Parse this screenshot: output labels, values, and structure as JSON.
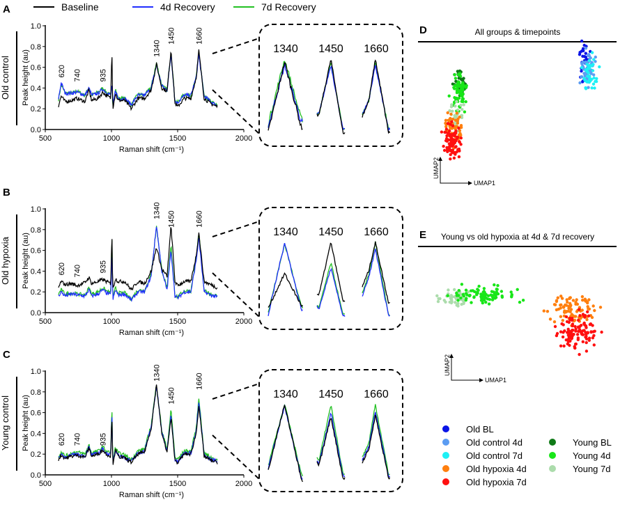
{
  "legend": {
    "items": [
      {
        "name": "Baseline",
        "color": "#000000"
      },
      {
        "name": "4d Recovery",
        "color": "#1f2dff"
      },
      {
        "name": "7d Recovery",
        "color": "#22c022"
      }
    ]
  },
  "chart_data": [
    {
      "type": "line",
      "panel": "A",
      "row_label": "Old control",
      "xlabel": "Raman shift (cm⁻¹)",
      "ylabel": "Peak height (au)",
      "xlim": [
        500,
        2000
      ],
      "ylim": [
        0,
        1.0
      ],
      "xticks": [
        500,
        1000,
        1500,
        2000
      ],
      "yticks": [
        "0.0",
        "0.2",
        "0.4",
        "0.6",
        "0.8",
        "1.0"
      ],
      "peak_labels": [
        "620",
        "740",
        "935",
        "1340",
        "1450",
        "1660"
      ],
      "peak_positions": [
        620,
        740,
        935,
        1340,
        1450,
        1660
      ],
      "peak_label_y": [
        0.5,
        0.46,
        0.46,
        0.7,
        0.82,
        0.82
      ],
      "inset_labels": [
        "1340",
        "1450",
        "1660"
      ],
      "x": [
        600,
        620,
        650,
        700,
        740,
        800,
        830,
        850,
        900,
        935,
        960,
        995,
        1003,
        1010,
        1030,
        1050,
        1100,
        1150,
        1200,
        1250,
        1300,
        1340,
        1380,
        1420,
        1450,
        1480,
        1500,
        1550,
        1600,
        1640,
        1660,
        1700,
        1750,
        1800
      ],
      "series": [
        {
          "name": "Baseline",
          "values": [
            0.23,
            0.32,
            0.27,
            0.28,
            0.3,
            0.27,
            0.38,
            0.28,
            0.3,
            0.36,
            0.33,
            0.3,
            0.8,
            0.2,
            0.35,
            0.28,
            0.28,
            0.2,
            0.3,
            0.3,
            0.38,
            0.63,
            0.4,
            0.37,
            0.77,
            0.25,
            0.22,
            0.3,
            0.3,
            0.5,
            0.76,
            0.3,
            0.25,
            0.22
          ]
        },
        {
          "name": "4d Recovery",
          "values": [
            0.3,
            0.45,
            0.35,
            0.35,
            0.36,
            0.33,
            0.4,
            0.33,
            0.35,
            0.39,
            0.36,
            0.33,
            0.45,
            0.22,
            0.38,
            0.3,
            0.3,
            0.24,
            0.33,
            0.33,
            0.4,
            0.62,
            0.42,
            0.38,
            0.73,
            0.27,
            0.26,
            0.33,
            0.33,
            0.5,
            0.72,
            0.32,
            0.27,
            0.23
          ]
        },
        {
          "name": "7d Recovery",
          "values": [
            0.29,
            0.43,
            0.35,
            0.35,
            0.37,
            0.33,
            0.41,
            0.33,
            0.36,
            0.4,
            0.36,
            0.33,
            0.45,
            0.22,
            0.39,
            0.3,
            0.3,
            0.24,
            0.34,
            0.33,
            0.41,
            0.64,
            0.43,
            0.38,
            0.75,
            0.27,
            0.26,
            0.34,
            0.33,
            0.5,
            0.74,
            0.32,
            0.27,
            0.23
          ]
        }
      ]
    },
    {
      "type": "line",
      "panel": "B",
      "row_label": "Old  hypoxia",
      "xlabel": "Raman shift (cm⁻¹)",
      "ylabel": "Peak height (au)",
      "xlim": [
        500,
        2000
      ],
      "ylim": [
        0,
        1.0
      ],
      "xticks": [
        500,
        1000,
        1500,
        2000
      ],
      "yticks": [
        "0.0",
        "0.2",
        "0.4",
        "0.6",
        "0.8",
        "1.0"
      ],
      "peak_labels": [
        "620",
        "740",
        "935",
        "1340",
        "1450",
        "1660"
      ],
      "peak_positions": [
        620,
        740,
        935,
        1340,
        1450,
        1660
      ],
      "peak_label_y": [
        0.36,
        0.34,
        0.38,
        0.9,
        0.82,
        0.82
      ],
      "inset_labels": [
        "1340",
        "1450",
        "1660"
      ],
      "x": [
        600,
        620,
        650,
        700,
        740,
        800,
        830,
        850,
        900,
        935,
        960,
        995,
        1003,
        1010,
        1030,
        1050,
        1100,
        1150,
        1200,
        1250,
        1300,
        1340,
        1380,
        1420,
        1450,
        1480,
        1500,
        1550,
        1600,
        1640,
        1660,
        1700,
        1750,
        1800
      ],
      "series": [
        {
          "name": "Baseline",
          "values": [
            0.24,
            0.3,
            0.27,
            0.28,
            0.26,
            0.29,
            0.34,
            0.28,
            0.3,
            0.32,
            0.3,
            0.28,
            0.8,
            0.22,
            0.33,
            0.3,
            0.3,
            0.22,
            0.3,
            0.28,
            0.4,
            0.63,
            0.42,
            0.35,
            0.84,
            0.3,
            0.26,
            0.3,
            0.3,
            0.55,
            0.77,
            0.3,
            0.27,
            0.24
          ]
        },
        {
          "name": "4d Recovery",
          "values": [
            0.16,
            0.2,
            0.16,
            0.18,
            0.17,
            0.16,
            0.22,
            0.16,
            0.18,
            0.22,
            0.19,
            0.17,
            0.6,
            0.12,
            0.22,
            0.17,
            0.18,
            0.12,
            0.2,
            0.2,
            0.35,
            0.84,
            0.4,
            0.22,
            0.6,
            0.16,
            0.14,
            0.2,
            0.2,
            0.5,
            0.72,
            0.2,
            0.17,
            0.15
          ]
        },
        {
          "name": "7d Recovery",
          "values": [
            0.18,
            0.22,
            0.18,
            0.19,
            0.18,
            0.17,
            0.24,
            0.18,
            0.2,
            0.24,
            0.21,
            0.19,
            0.78,
            0.13,
            0.24,
            0.19,
            0.19,
            0.13,
            0.22,
            0.21,
            0.37,
            0.83,
            0.42,
            0.23,
            0.65,
            0.17,
            0.15,
            0.21,
            0.21,
            0.52,
            0.77,
            0.21,
            0.18,
            0.16
          ]
        }
      ]
    },
    {
      "type": "line",
      "panel": "C",
      "row_label": "Young control",
      "xlabel": "Raman shift (cm⁻¹)",
      "ylabel": "Peak height (au)",
      "xlim": [
        500,
        2000
      ],
      "ylim": [
        0,
        1.0
      ],
      "xticks": [
        500,
        1000,
        1500,
        2000
      ],
      "yticks": [
        "0.0",
        "0.2",
        "0.4",
        "0.6",
        "0.8",
        "1.0"
      ],
      "peak_labels": [
        "620",
        "740",
        "935",
        "1340",
        "1450",
        "1660"
      ],
      "peak_positions": [
        620,
        740,
        935,
        1340,
        1450,
        1660
      ],
      "peak_label_y": [
        0.28,
        0.28,
        0.28,
        0.9,
        0.68,
        0.82
      ],
      "inset_labels": [
        "1340",
        "1450",
        "1660"
      ],
      "x": [
        600,
        620,
        650,
        700,
        740,
        800,
        830,
        850,
        900,
        935,
        960,
        995,
        1003,
        1010,
        1030,
        1050,
        1100,
        1150,
        1200,
        1250,
        1300,
        1340,
        1380,
        1420,
        1450,
        1480,
        1500,
        1550,
        1600,
        1640,
        1660,
        1700,
        1750,
        1800
      ],
      "series": [
        {
          "name": "Baseline",
          "values": [
            0.15,
            0.19,
            0.16,
            0.18,
            0.19,
            0.17,
            0.26,
            0.18,
            0.2,
            0.24,
            0.2,
            0.18,
            0.6,
            0.1,
            0.24,
            0.18,
            0.16,
            0.12,
            0.2,
            0.22,
            0.45,
            0.87,
            0.4,
            0.22,
            0.55,
            0.14,
            0.12,
            0.2,
            0.2,
            0.4,
            0.67,
            0.18,
            0.14,
            0.12
          ]
        },
        {
          "name": "4d Recovery",
          "values": [
            0.16,
            0.2,
            0.17,
            0.19,
            0.2,
            0.18,
            0.27,
            0.19,
            0.21,
            0.25,
            0.21,
            0.19,
            0.62,
            0.11,
            0.25,
            0.19,
            0.17,
            0.13,
            0.21,
            0.23,
            0.46,
            0.86,
            0.41,
            0.23,
            0.58,
            0.15,
            0.13,
            0.21,
            0.21,
            0.42,
            0.7,
            0.19,
            0.15,
            0.13
          ]
        },
        {
          "name": "7d Recovery",
          "values": [
            0.18,
            0.22,
            0.18,
            0.21,
            0.22,
            0.2,
            0.29,
            0.21,
            0.23,
            0.27,
            0.23,
            0.21,
            0.7,
            0.12,
            0.27,
            0.21,
            0.19,
            0.15,
            0.23,
            0.25,
            0.48,
            0.87,
            0.43,
            0.25,
            0.63,
            0.17,
            0.15,
            0.23,
            0.23,
            0.45,
            0.75,
            0.21,
            0.17,
            0.14
          ]
        }
      ]
    },
    {
      "type": "scatter",
      "panel": "D",
      "title": "All groups & timepoints",
      "xlabel": "UMAP1",
      "ylabel": "UMAP2",
      "clusters": [
        {
          "group": "Old BL",
          "center": [
            8.4,
            8.6
          ],
          "spread": [
            0.35,
            1.4
          ],
          "n": 30
        },
        {
          "group": "Old control 4d",
          "center": [
            8.6,
            8.0
          ],
          "spread": [
            0.4,
            1.3
          ],
          "n": 60
        },
        {
          "group": "Old control 7d",
          "center": [
            8.7,
            7.6
          ],
          "spread": [
            0.4,
            1.2
          ],
          "n": 45
        },
        {
          "group": "Young BL",
          "center": [
            1.6,
            7.0
          ],
          "spread": [
            0.35,
            1.0
          ],
          "n": 40
        },
        {
          "group": "Young 4d",
          "center": [
            1.5,
            6.3
          ],
          "spread": [
            0.4,
            1.2
          ],
          "n": 70
        },
        {
          "group": "Young 7d",
          "center": [
            1.3,
            4.6
          ],
          "spread": [
            0.4,
            1.0
          ],
          "n": 35
        },
        {
          "group": "Old hypoxia 4d",
          "center": [
            1.2,
            3.8
          ],
          "spread": [
            0.45,
            1.1
          ],
          "n": 60
        },
        {
          "group": "Old hypoxia 7d",
          "center": [
            1.1,
            3.0
          ],
          "spread": [
            0.45,
            1.3
          ],
          "n": 90
        }
      ]
    },
    {
      "type": "scatter",
      "panel": "E",
      "title": "Young vs old hypoxia at 4d & 7d recovery",
      "xlabel": "UMAP1",
      "ylabel": "UMAP2",
      "clusters": [
        {
          "group": "Young 7d",
          "center": [
            1.0,
            7.3
          ],
          "spread": [
            0.9,
            0.7
          ],
          "n": 60
        },
        {
          "group": "Young 4d",
          "center": [
            2.6,
            7.6
          ],
          "spread": [
            1.9,
            0.8
          ],
          "n": 90
        },
        {
          "group": "Old hypoxia 4d",
          "center": [
            7.6,
            6.3
          ],
          "spread": [
            1.3,
            1.4
          ],
          "n": 90
        },
        {
          "group": "Old hypoxia 7d",
          "center": [
            8.0,
            4.4
          ],
          "spread": [
            1.2,
            1.6
          ],
          "n": 110
        }
      ]
    }
  ],
  "scatter_legend": {
    "items": [
      {
        "name": "Old BL",
        "color": "#0a14e6"
      },
      {
        "name": "Old control 4d",
        "color": "#5b9cf2"
      },
      {
        "name": "Old control 7d",
        "color": "#1ef0f5"
      },
      {
        "name": "Old hypoxia 4d",
        "color": "#ff7f0e"
      },
      {
        "name": "Old hypoxia 7d",
        "color": "#ff1010"
      },
      {
        "name": "Young BL",
        "color": "#0f7a17"
      },
      {
        "name": "Young 4d",
        "color": "#18e618"
      },
      {
        "name": "Young 7d",
        "color": "#acdcac"
      }
    ]
  }
}
